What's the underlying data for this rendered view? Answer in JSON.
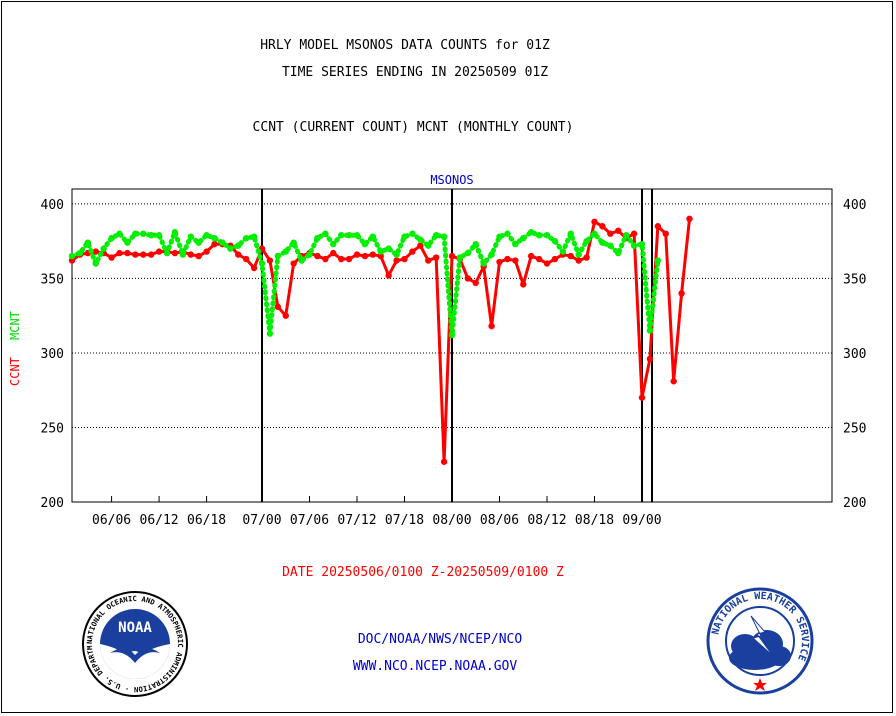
{
  "chart_data": {
    "type": "line",
    "title_lines": [
      "HRLY MODEL MSONOS DATA COUNTS for 01Z",
      "TIME SERIES ENDING IN 20250509 01Z"
    ],
    "subtitle": "CCNT (CURRENT COUNT) MCNT (MONTHLY COUNT)",
    "panel_label": "MSONOS",
    "ylabel_ccnt": "CCNT",
    "ylabel_mcnt": "MCNT",
    "xlabel": "DATE 20250506/0100 Z-20250509/0100 Z",
    "ylim": [
      200,
      410
    ],
    "yticks": [
      200,
      250,
      300,
      350,
      400
    ],
    "xlim": [
      0,
      96
    ],
    "x_ticks": [
      {
        "x": 5,
        "label": "06/06"
      },
      {
        "x": 11,
        "label": "06/12"
      },
      {
        "x": 17,
        "label": "06/18"
      },
      {
        "x": 24,
        "label": "07/00"
      },
      {
        "x": 30,
        "label": "07/06"
      },
      {
        "x": 36,
        "label": "07/12"
      },
      {
        "x": 42,
        "label": "07/18"
      },
      {
        "x": 48,
        "label": "08/00"
      },
      {
        "x": 54,
        "label": "08/06"
      },
      {
        "x": 60,
        "label": "08/12"
      },
      {
        "x": 66,
        "label": "08/18"
      },
      {
        "x": 72,
        "label": "09/00"
      }
    ],
    "day_boundaries": [
      24,
      48,
      72
    ],
    "grid": true,
    "series": [
      {
        "name": "CCNT",
        "color": "#ff0000",
        "style": "solid",
        "values": [
          [
            0,
            362
          ],
          [
            1,
            366
          ],
          [
            2,
            367
          ],
          [
            3,
            368
          ],
          [
            4,
            367
          ],
          [
            5,
            364
          ],
          [
            6,
            367
          ],
          [
            7,
            367
          ],
          [
            8,
            366
          ],
          [
            9,
            366
          ],
          [
            10,
            366
          ],
          [
            11,
            368
          ],
          [
            12,
            368
          ],
          [
            13,
            367
          ],
          [
            14,
            368
          ],
          [
            15,
            366
          ],
          [
            16,
            365
          ],
          [
            17,
            368
          ],
          [
            18,
            373
          ],
          [
            19,
            373
          ],
          [
            20,
            372
          ],
          [
            21,
            366
          ],
          [
            22,
            363
          ],
          [
            23,
            357
          ],
          [
            24,
            370
          ],
          [
            25,
            362
          ],
          [
            26,
            331
          ],
          [
            27,
            325
          ],
          [
            28,
            360
          ],
          [
            29,
            365
          ],
          [
            30,
            367
          ],
          [
            31,
            365
          ],
          [
            32,
            363
          ],
          [
            33,
            367
          ],
          [
            34,
            363
          ],
          [
            35,
            363
          ],
          [
            36,
            366
          ],
          [
            37,
            365
          ],
          [
            38,
            366
          ],
          [
            39,
            365
          ],
          [
            40,
            352
          ],
          [
            41,
            362
          ],
          [
            42,
            363
          ],
          [
            43,
            368
          ],
          [
            44,
            372
          ],
          [
            45,
            362
          ],
          [
            46,
            364
          ],
          [
            47,
            227
          ],
          [
            48,
            365
          ],
          [
            49,
            363
          ],
          [
            50,
            350
          ],
          [
            51,
            347
          ],
          [
            52,
            358
          ],
          [
            53,
            318
          ],
          [
            54,
            361
          ],
          [
            55,
            363
          ],
          [
            56,
            362
          ],
          [
            57,
            346
          ],
          [
            58,
            365
          ],
          [
            59,
            363
          ],
          [
            60,
            360
          ],
          [
            61,
            363
          ],
          [
            62,
            366
          ],
          [
            63,
            365
          ],
          [
            64,
            362
          ],
          [
            65,
            364
          ],
          [
            66,
            388
          ],
          [
            67,
            385
          ],
          [
            68,
            380
          ],
          [
            69,
            382
          ],
          [
            70,
            377
          ],
          [
            71,
            380
          ],
          [
            72,
            270
          ],
          [
            73,
            296
          ],
          [
            74,
            385
          ],
          [
            75,
            380
          ],
          [
            76,
            281
          ],
          [
            77,
            340
          ],
          [
            78,
            390
          ]
        ]
      },
      {
        "name": "MCNT",
        "color": "#00ee00",
        "style": "dotted",
        "values": [
          [
            0,
            365
          ],
          [
            1,
            367
          ],
          [
            2,
            374
          ],
          [
            3,
            360
          ],
          [
            4,
            370
          ],
          [
            5,
            377
          ],
          [
            6,
            380
          ],
          [
            7,
            374
          ],
          [
            8,
            380
          ],
          [
            9,
            380
          ],
          [
            10,
            379
          ],
          [
            11,
            379
          ],
          [
            12,
            367
          ],
          [
            13,
            381
          ],
          [
            14,
            366
          ],
          [
            15,
            378
          ],
          [
            16,
            374
          ],
          [
            17,
            379
          ],
          [
            18,
            377
          ],
          [
            19,
            374
          ],
          [
            20,
            370
          ],
          [
            21,
            372
          ],
          [
            22,
            377
          ],
          [
            23,
            378
          ],
          [
            24,
            360
          ],
          [
            25,
            313
          ],
          [
            26,
            365
          ],
          [
            27,
            368
          ],
          [
            28,
            374
          ],
          [
            29,
            362
          ],
          [
            30,
            366
          ],
          [
            31,
            377
          ],
          [
            32,
            380
          ],
          [
            33,
            373
          ],
          [
            34,
            379
          ],
          [
            35,
            379
          ],
          [
            36,
            379
          ],
          [
            37,
            373
          ],
          [
            38,
            378
          ],
          [
            39,
            368
          ],
          [
            40,
            370
          ],
          [
            41,
            366
          ],
          [
            42,
            378
          ],
          [
            43,
            380
          ],
          [
            44,
            376
          ],
          [
            45,
            372
          ],
          [
            46,
            379
          ],
          [
            47,
            378
          ],
          [
            48,
            312
          ],
          [
            49,
            364
          ],
          [
            50,
            367
          ],
          [
            51,
            373
          ],
          [
            52,
            360
          ],
          [
            53,
            366
          ],
          [
            54,
            378
          ],
          [
            55,
            380
          ],
          [
            56,
            373
          ],
          [
            57,
            377
          ],
          [
            58,
            381
          ],
          [
            59,
            379
          ],
          [
            60,
            379
          ],
          [
            61,
            375
          ],
          [
            62,
            368
          ],
          [
            63,
            380
          ],
          [
            64,
            366
          ],
          [
            65,
            375
          ],
          [
            66,
            380
          ],
          [
            67,
            374
          ],
          [
            68,
            372
          ],
          [
            69,
            367
          ],
          [
            70,
            379
          ],
          [
            71,
            372
          ],
          [
            72,
            373
          ],
          [
            73,
            315
          ],
          [
            74,
            362
          ]
        ]
      }
    ]
  },
  "footer": {
    "agency_line": "DOC/NOAA/NWS/NCEP/NCO",
    "url_line": "WWW.NCO.NCEP.NOAA.GOV"
  },
  "logos": {
    "noaa_center": "NOAA",
    "noaa_ring": "NATIONAL OCEANIC AND ATMOSPHERIC ADMINISTRATION · U.S. DEPARTMENT OF COMMERCE ·",
    "nws_ring": "NATIONAL WEATHER SERVICE"
  }
}
